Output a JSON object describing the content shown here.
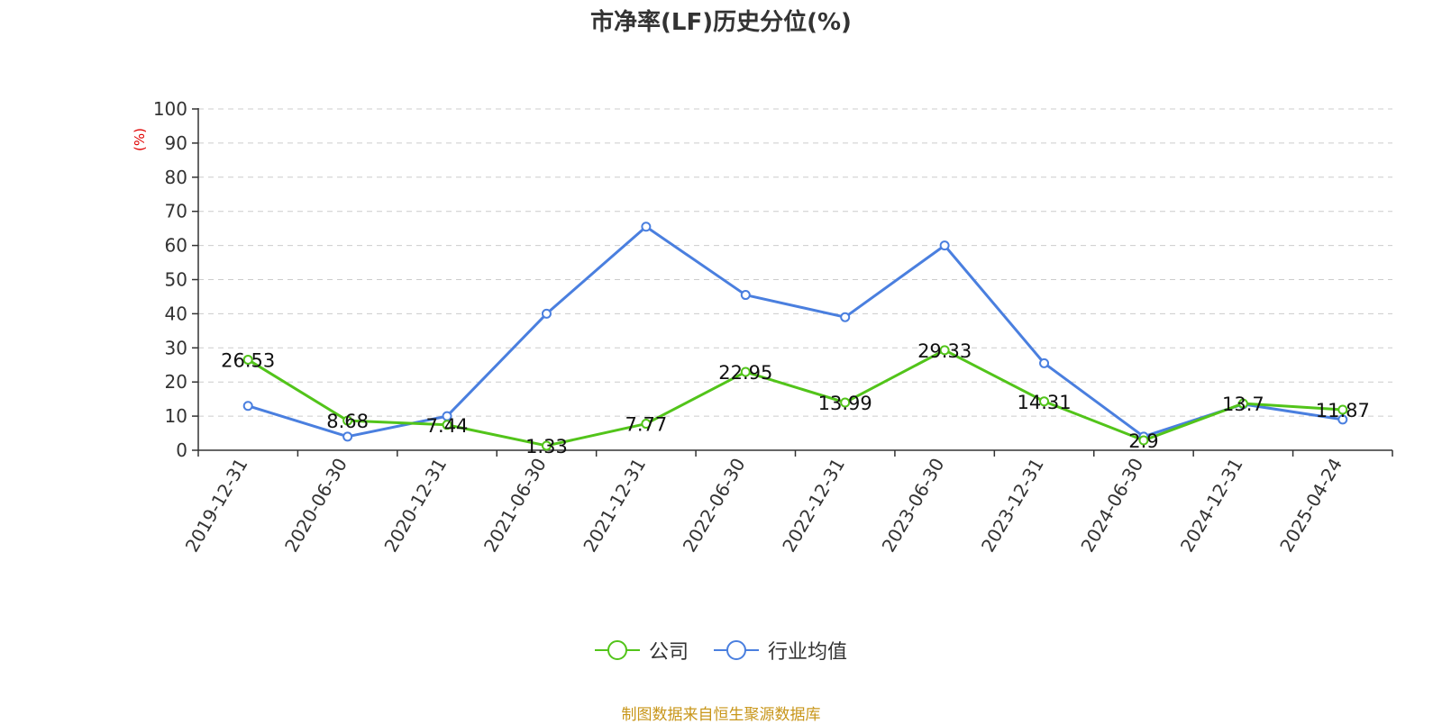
{
  "chart_data": {
    "type": "line",
    "title": "市净率(LF)历史分位(%)",
    "ylabel": "(%)",
    "xlabel": "",
    "ylim": [
      0,
      100
    ],
    "yticks": [
      0,
      10,
      20,
      30,
      40,
      50,
      60,
      70,
      80,
      90,
      100
    ],
    "grid": true,
    "legend_position": "bottom",
    "categories": [
      "2019-12-31",
      "2020-06-30",
      "2020-12-31",
      "2021-06-30",
      "2021-12-31",
      "2022-06-30",
      "2022-12-31",
      "2023-06-30",
      "2023-12-31",
      "2024-06-30",
      "2024-12-31",
      "2025-04-24"
    ],
    "series": [
      {
        "name": "公司",
        "color": "#52c41a",
        "values": [
          26.53,
          8.68,
          7.44,
          1.33,
          7.77,
          22.95,
          13.99,
          29.33,
          14.31,
          2.9,
          13.7,
          11.87
        ],
        "labels": [
          "26.53",
          "8.68",
          "7.44",
          "1.33",
          "7.77",
          "22.95",
          "13.99",
          "29.33",
          "14.31",
          "2.9",
          "13.7",
          "11.87"
        ]
      },
      {
        "name": "行业均值",
        "color": "#4a7fdf",
        "values": [
          13.0,
          4.0,
          10.0,
          40.0,
          65.5,
          45.5,
          39.0,
          60.0,
          25.5,
          4.0,
          13.5,
          9.0
        ]
      }
    ]
  },
  "source_note": "制图数据来自恒生聚源数据库"
}
